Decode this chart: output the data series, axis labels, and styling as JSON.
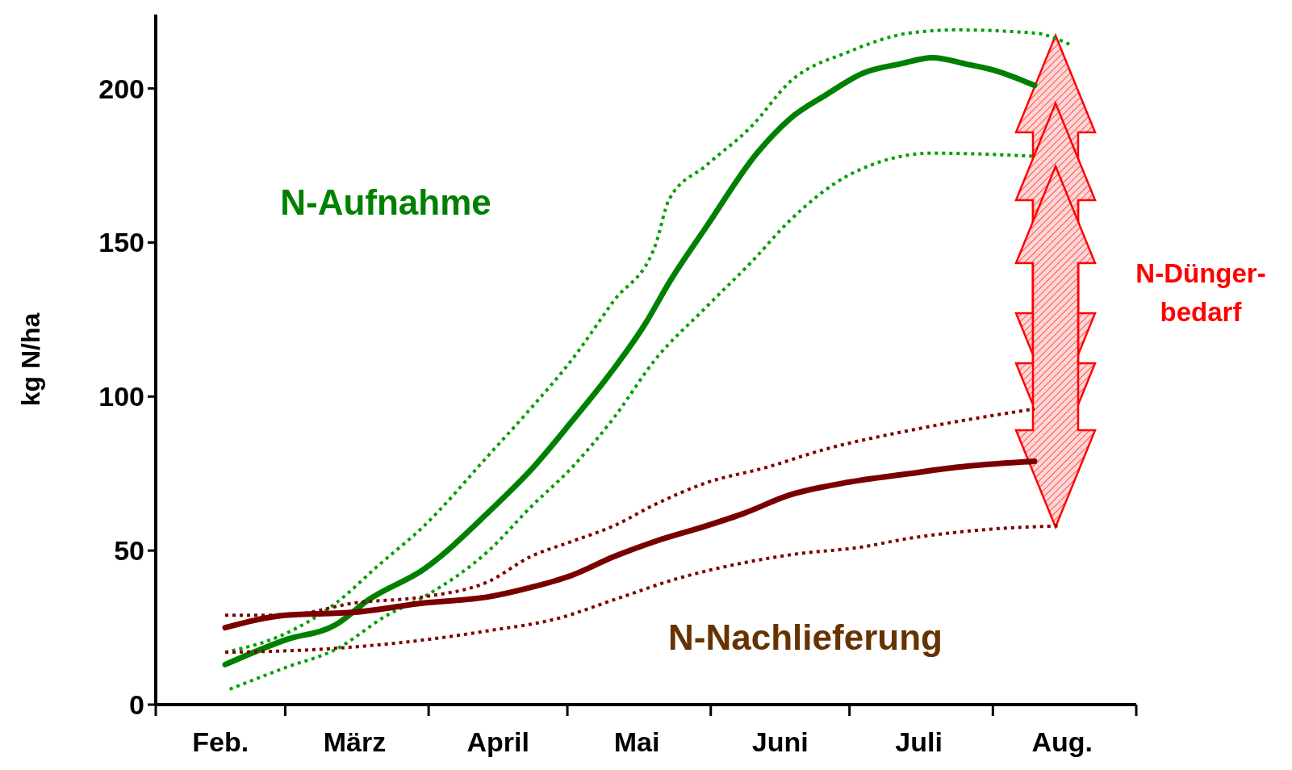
{
  "chart_data": {
    "type": "line",
    "ylabel": "kg N/ha",
    "ylim": [
      0,
      224
    ],
    "yticks": [
      0,
      50,
      100,
      150,
      200
    ],
    "xlim": [
      "--02-01",
      "--09-01"
    ],
    "xticks": [
      {
        "value": "--02-01",
        "label": null
      },
      {
        "value": "--02-15",
        "label": "Feb."
      },
      {
        "value": "--03-01",
        "label": null
      },
      {
        "value": "--03-16",
        "label": "März"
      },
      {
        "value": "--04-01",
        "label": null
      },
      {
        "value": "--04-16",
        "label": "April"
      },
      {
        "value": "--05-01",
        "label": null
      },
      {
        "value": "--05-16",
        "label": "Mai"
      },
      {
        "value": "--06-01",
        "label": null
      },
      {
        "value": "--06-16",
        "label": "Juni"
      },
      {
        "value": "--07-01",
        "label": null
      },
      {
        "value": "--07-16",
        "label": "Juli"
      },
      {
        "value": "--08-01",
        "label": null
      },
      {
        "value": "--08-16",
        "label": "Aug."
      },
      {
        "value": "--09-01",
        "label": null
      }
    ],
    "marker": "none",
    "series": [
      {
        "name": "N-Aufnahme",
        "color": "#008000",
        "line_style": "solid",
        "x": [
          "--02-16",
          "--03-01",
          "--03-12",
          "--03-19",
          "--03-31",
          "--04-15",
          "--04-23",
          "--05-02",
          "--05-09",
          "--05-18",
          "--05-23",
          "--05-31",
          "--06-11",
          "--06-18",
          "--06-26",
          "--07-04",
          "--07-12",
          "--07-19",
          "--07-26",
          "--08-01",
          "--08-10"
        ],
        "values": [
          13,
          21,
          26,
          34,
          44,
          64,
          76,
          92,
          105,
          124,
          137,
          155,
          179,
          190,
          198,
          205,
          208,
          210,
          208,
          206,
          201
        ]
      },
      {
        "color": "#00a000",
        "line_style": "dotted",
        "x": [
          "--02-16",
          "--03-01",
          "--03-12",
          "--03-21",
          "--03-31",
          "--04-14",
          "--04-23",
          "--05-02",
          "--05-11",
          "--05-20",
          "--05-23",
          "--05-31",
          "--06-10",
          "--06-18",
          "--07-01",
          "--07-14",
          "--07-24",
          "--08-10",
          "--08-18"
        ],
        "values": [
          17,
          23,
          33,
          45,
          58,
          81,
          96,
          112,
          131,
          149,
          164,
          175,
          188,
          202,
          212,
          218,
          219,
          218,
          214
        ]
      },
      {
        "color": "#00a000",
        "line_style": "dotted",
        "x": [
          "--02-17",
          "--03-01",
          "--03-12",
          "--03-23",
          "--03-31",
          "--04-14",
          "--04-23",
          "--05-02",
          "--05-11",
          "--05-20",
          "--05-31",
          "--06-10",
          "--06-18",
          "--07-01",
          "--07-19",
          "--08-10"
        ],
        "values": [
          5,
          12,
          18,
          29,
          35,
          50,
          64,
          77,
          93,
          112,
          129,
          144,
          157,
          172,
          179,
          178
        ]
      },
      {
        "name": "N-Nachlieferung",
        "color": "#7a0000",
        "line_style": "solid",
        "x": [
          "--02-16",
          "--03-01",
          "--03-16",
          "--03-31",
          "--04-14",
          "--04-23",
          "--05-02",
          "--05-11",
          "--05-20",
          "--05-31",
          "--06-08",
          "--06-18",
          "--06-30",
          "--07-14",
          "--07-24",
          "--08-10"
        ],
        "values": [
          25,
          29,
          30,
          33,
          35,
          38,
          42,
          48,
          53,
          58,
          62,
          68,
          72,
          75,
          77,
          79
        ]
      },
      {
        "color": "#800000",
        "line_style": "dotted",
        "x": [
          "--02-16",
          "--03-01",
          "--03-16",
          "--03-31",
          "--04-14",
          "--04-23",
          "--05-02",
          "--05-11",
          "--05-20",
          "--05-31",
          "--06-13",
          "--06-26",
          "--07-14",
          "--08-10"
        ],
        "values": [
          29,
          29,
          33,
          35,
          40,
          48,
          53,
          58,
          65,
          72,
          77,
          83,
          89,
          96
        ]
      },
      {
        "color": "#800000",
        "line_style": "dotted",
        "x": [
          "--02-16",
          "--03-09",
          "--03-31",
          "--04-14",
          "--04-29",
          "--05-11",
          "--05-25",
          "--06-08",
          "--06-20",
          "--07-03",
          "--07-14",
          "--08-01",
          "--08-15"
        ],
        "values": [
          17,
          18,
          21,
          24,
          28,
          34,
          41,
          46,
          49,
          51,
          54,
          57,
          58
        ]
      }
    ],
    "annotations": [
      "N-Dünger-\nbedarf"
    ]
  }
}
